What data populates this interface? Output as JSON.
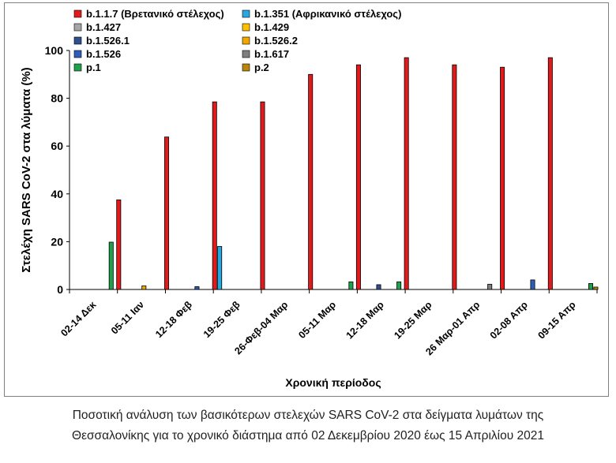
{
  "chart_data": {
    "type": "bar",
    "title": "",
    "xlabel": "Χρονική περίοδος",
    "ylabel": "Στελέχη SARS CoV-2 στα λύματα (%)",
    "ylim": [
      0,
      100
    ],
    "yticks": [
      0,
      20,
      40,
      60,
      80,
      100
    ],
    "grid": false,
    "legend_position": "top, inside plot",
    "categories": [
      "02-14 Δεκ",
      "05-11 Ιαν",
      "12-18 Φεβ",
      "19-25 Φεβ",
      "26-Φεβ-04 Μαρ",
      "05-11 Μαρ",
      "12-18 Μαρ",
      "19-25 Μαρ",
      "26 Μαρ-01 Απρ",
      "02-08 Απρ",
      "09-15 Απρ"
    ],
    "series": [
      {
        "name": "b.1.1.7 (Βρετανικό στέλεχος)",
        "color": "#e31a1c",
        "values": [
          0,
          37.5,
          63.8,
          78.5,
          78.5,
          90.0,
          94.0,
          97.0,
          94.0,
          93.0,
          97.0
        ]
      },
      {
        "name": "b.1.351 (Αφρικανικό στέλεχος)",
        "color": "#29a8e0",
        "values": [
          0,
          0,
          0,
          18,
          0,
          0,
          0,
          0,
          0,
          0,
          0
        ]
      },
      {
        "name": "b.1.427",
        "color": "#a6a6a6",
        "values": [
          0,
          0,
          0,
          0,
          0,
          0,
          0,
          0,
          0,
          0,
          0
        ]
      },
      {
        "name": "b.1.429",
        "color": "#ffc000",
        "values": [
          0,
          0,
          0,
          0,
          0,
          0,
          0,
          0,
          0,
          0,
          0
        ]
      },
      {
        "name": "b.1.526.1",
        "color": "#2f4f8f",
        "values": [
          0,
          0,
          0,
          0,
          0,
          0,
          2.0,
          0,
          0,
          0,
          0
        ]
      },
      {
        "name": "b.1.526.2",
        "color": "#f0a800",
        "values": [
          0,
          1.5,
          0,
          0,
          0,
          0,
          0,
          0,
          0,
          0,
          0
        ]
      },
      {
        "name": "b.1.526",
        "color": "#2e5eb8",
        "values": [
          0,
          0,
          1.2,
          0,
          0,
          0,
          0,
          0,
          0,
          4.0,
          0
        ]
      },
      {
        "name": "b.1.617",
        "color": "#7f7f7f",
        "values": [
          0,
          0,
          0,
          0,
          0,
          0,
          0,
          0,
          2.2,
          0,
          0
        ]
      },
      {
        "name": "p.1",
        "color": "#1fa04a",
        "values": [
          19.8,
          0,
          0,
          0,
          0,
          3.2,
          3.2,
          0,
          0,
          0,
          2.5
        ]
      },
      {
        "name": "p.2",
        "color": "#b8860b",
        "values": [
          0,
          0,
          0,
          0,
          0,
          0,
          0,
          0,
          0,
          0,
          1.0
        ]
      }
    ]
  },
  "caption": {
    "line1": "Ποσοτική ανάλυση των βασικότερων στελεχών SARS CoV-2 στα δείγματα λυμάτων της",
    "line2": "Θεσσαλονίκης για το χρονικό διάστημα από 02 Δεκεμβρίου 2020 έως 15 Απριλίου 2021"
  }
}
